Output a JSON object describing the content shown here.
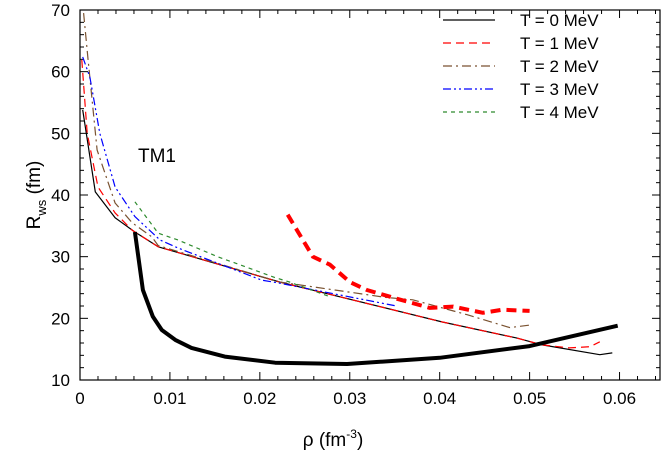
{
  "chart_data": {
    "type": "line",
    "title": "",
    "annotation": "TM1",
    "xlabel": {
      "base": "ρ (fm",
      "sup": "-3",
      "tail": ")"
    },
    "ylabel": {
      "base": "R",
      "sub": "ws",
      "tail": " (fm)"
    },
    "xlim": [
      0,
      0.0645
    ],
    "ylim": [
      10,
      70
    ],
    "xticks": [
      "0",
      "0.01",
      "0.02",
      "0.03",
      "0.04",
      "0.05",
      "0.06"
    ],
    "xtick_values": [
      0,
      0.01,
      0.02,
      0.03,
      0.04,
      0.05,
      0.06
    ],
    "yticks": [
      "10",
      "20",
      "30",
      "40",
      "50",
      "60",
      "70"
    ],
    "ytick_values": [
      10,
      20,
      30,
      40,
      50,
      60,
      70
    ],
    "grid": false,
    "legend_position": "top-right",
    "series": [
      {
        "name": "T = 0 MeV",
        "color": "#000000",
        "style": "solid",
        "weight": "thin",
        "points": [
          [
            0.0003,
            53.8
          ],
          [
            0.0017,
            40.5
          ],
          [
            0.0039,
            36.3
          ],
          [
            0.0061,
            34
          ],
          [
            0.0087,
            31.6
          ],
          [
            0.0222,
            25.9
          ],
          [
            0.0403,
            19.4
          ],
          [
            0.0486,
            16.8
          ],
          [
            0.0514,
            15.7
          ],
          [
            0.0578,
            14.1
          ],
          [
            0.0592,
            14.4
          ]
        ]
      },
      {
        "name": "T = 1 MeV",
        "color": "#ff0000",
        "style": "dashed",
        "weight": "thin",
        "points": [
          [
            0.0002,
            61.9
          ],
          [
            0.0008,
            50
          ],
          [
            0.002,
            41.3
          ],
          [
            0.0039,
            37.1
          ],
          [
            0.0058,
            34.3
          ],
          [
            0.0087,
            31.6
          ],
          [
            0.0222,
            25.9
          ],
          [
            0.0403,
            19.4
          ],
          [
            0.0486,
            16.8
          ],
          [
            0.0514,
            15.7
          ],
          [
            0.0544,
            15.2
          ],
          [
            0.0567,
            15.4
          ],
          [
            0.0578,
            16.2
          ]
        ]
      },
      {
        "name": "T = 2 MeV",
        "color": "#7a5230",
        "style": "dashdot",
        "weight": "thin",
        "points": [
          [
            0.0004,
            69.5
          ],
          [
            0.0009,
            61.9
          ],
          [
            0.0019,
            47.3
          ],
          [
            0.0039,
            38.7
          ],
          [
            0.0058,
            35.5
          ],
          [
            0.008,
            33.2
          ],
          [
            0.0087,
            31.8
          ],
          [
            0.0222,
            25.9
          ],
          [
            0.034,
            23.4
          ],
          [
            0.037,
            23
          ],
          [
            0.043,
            20.6
          ],
          [
            0.0478,
            18.5
          ],
          [
            0.05,
            18.9
          ]
        ]
      },
      {
        "name": "T = 3 MeV",
        "color": "#0000ff",
        "style": "dashdotdot",
        "weight": "thin",
        "points": [
          [
            0.0003,
            62.4
          ],
          [
            0.0011,
            59.1
          ],
          [
            0.0022,
            50
          ],
          [
            0.0039,
            41.3
          ],
          [
            0.0061,
            36.5
          ],
          [
            0.0089,
            32.7
          ],
          [
            0.0109,
            31.4
          ],
          [
            0.0202,
            26.2
          ],
          [
            0.0222,
            25.7
          ],
          [
            0.0352,
            22
          ]
        ]
      },
      {
        "name": "T = 4 MeV",
        "color": "#2e8b2e",
        "style": "dotted-dash",
        "weight": "thin",
        "points": [
          [
            0.0061,
            38.9
          ],
          [
            0.0087,
            33.8
          ],
          [
            0.0109,
            32.7
          ],
          [
            0.0153,
            30
          ],
          [
            0.0187,
            28.2
          ],
          [
            0.0217,
            26.6
          ],
          [
            0.0233,
            25.9
          ],
          [
            0.0278,
            23.5
          ]
        ]
      },
      {
        "color": "#000000",
        "style": "solid",
        "weight": "thick",
        "points": [
          [
            0.0061,
            34
          ],
          [
            0.007,
            24.6
          ],
          [
            0.0081,
            20.3
          ],
          [
            0.0091,
            18.1
          ],
          [
            0.0106,
            16.5
          ],
          [
            0.0124,
            15.2
          ],
          [
            0.0161,
            13.8
          ],
          [
            0.0217,
            12.8
          ],
          [
            0.0297,
            12.6
          ],
          [
            0.04,
            13.6
          ],
          [
            0.05,
            15.5
          ],
          [
            0.0598,
            18.8
          ]
        ]
      },
      {
        "color": "#ff0000",
        "style": "dashed",
        "weight": "thick",
        "points": [
          [
            0.0231,
            36.8
          ],
          [
            0.0259,
            30
          ],
          [
            0.0278,
            28.7
          ],
          [
            0.03,
            25.9
          ],
          [
            0.0319,
            24.6
          ],
          [
            0.0352,
            23.2
          ],
          [
            0.0389,
            21.7
          ],
          [
            0.0415,
            21.9
          ],
          [
            0.0448,
            20.9
          ],
          [
            0.047,
            21.4
          ],
          [
            0.05,
            21.2
          ]
        ]
      }
    ]
  }
}
